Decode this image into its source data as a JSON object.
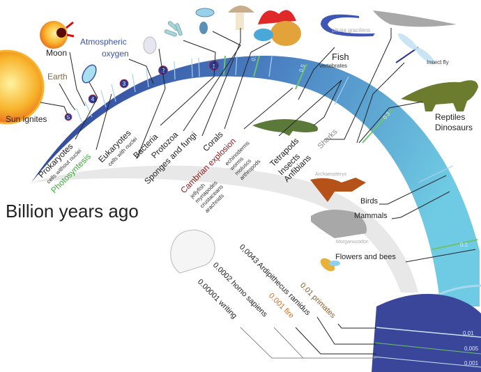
{
  "title": "Billion years ago",
  "colors": {
    "band_start": "#2b3990",
    "band_mid": "#4a7fc1",
    "band_end": "#6fcbe3",
    "recent_block": "#3a4699",
    "green_mark": "#6cc36c",
    "cambrian": "#8b1a1a",
    "photosynthesis": "#3aaa35",
    "earth": "#8b6a3a",
    "oxygen": "#3a52a8",
    "primates": "#8b5a2b",
    "fire": "#d4702a",
    "gray_label": "#9a9a9a"
  },
  "stages": [
    "5",
    "4",
    "3",
    "2",
    "1"
  ],
  "band_ticks": [
    "0.7",
    "0.5",
    "0.3",
    "0.1",
    "0,01",
    "0,005",
    "0,001"
  ],
  "events": {
    "sun": "Sun ignites",
    "moon": "Moon",
    "earth": "Earth",
    "oxygen_1": "Atmospheric",
    "oxygen_2": "oxygen",
    "prokaryotes": "Prokaryotes",
    "prokaryotes_note": "cells without nuclei",
    "photosynthesis": "Photosyntesis",
    "eukaryotes": "Eukaryotes",
    "eukaryotes_note": "cells with nuclei",
    "bacteria": "Bacteria",
    "protozoa": "Protozoa",
    "sponges": "Sponges and fungi",
    "corals": "Corals",
    "cambrian": "Cambrian explosion",
    "cambrian_list": [
      "jellyfish",
      "myriapodes",
      "crustaceans",
      "arachnids"
    ],
    "cambrian_list2": [
      "echinoderms",
      "worms",
      "moluscs",
      "arthropods"
    ],
    "tetrapods": [
      "Tetrapods",
      "Insects",
      "Anfibians"
    ],
    "sharks": "Sharks",
    "fish": "Fish",
    "fish_note": "vertebrates",
    "pikaia": "pikaia gracilens",
    "insect_fly": "Insect fly",
    "reptiles": "Reptiles",
    "dinosaurs": "Dinosaurs",
    "archaeopteryx": "Archaeopteryx",
    "birds": "Birds",
    "mammals": "Mammals",
    "morganucodon": "Morganucodon",
    "flowers": "Flowers and bees",
    "ardipithecus": "0,0043 Ardipithecus ramidus",
    "primates": "0.01 primates",
    "homo": "0.0002 homo sapiens",
    "fire": "0.001 fire",
    "writing": "0.00001 writing"
  },
  "icons": [
    "sun",
    "moon",
    "prokaryote-cell",
    "eukaryote-cell",
    "bacteria",
    "protozoa",
    "mushroom",
    "coral",
    "pikaia",
    "shark",
    "dragonfly",
    "triceratops",
    "tetrapod",
    "archaeopteryx",
    "morganucodon",
    "bee",
    "skull"
  ]
}
